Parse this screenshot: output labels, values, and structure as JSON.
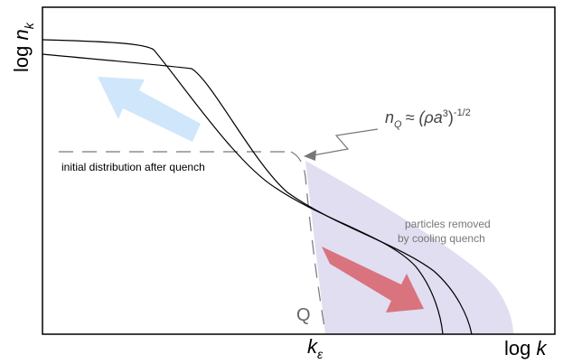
{
  "labels": {
    "y_axis_main": "log",
    "y_axis_var": "n",
    "y_axis_sub": "k",
    "x_axis_main": "log",
    "x_axis_var": "k",
    "k_epsilon_var": "k",
    "k_epsilon_sub": "ε",
    "q_label": "Q",
    "initial_distribution": "initial distribution after quench",
    "removed_line1": "particles removed",
    "removed_line2": "by cooling quench",
    "formula_n": "n",
    "formula_sub": "Q",
    "formula_main": "≈ (ρa",
    "formula_sup3": "3",
    "formula_close": ")",
    "formula_exp": "-1/2"
  },
  "colors": {
    "axis": "#000000",
    "curve": "#000000",
    "dashed": "#777777",
    "shaded_region": "#e0def0",
    "arrow_blue": "#cfe6fb",
    "arrow_red": "#d9737e"
  }
}
